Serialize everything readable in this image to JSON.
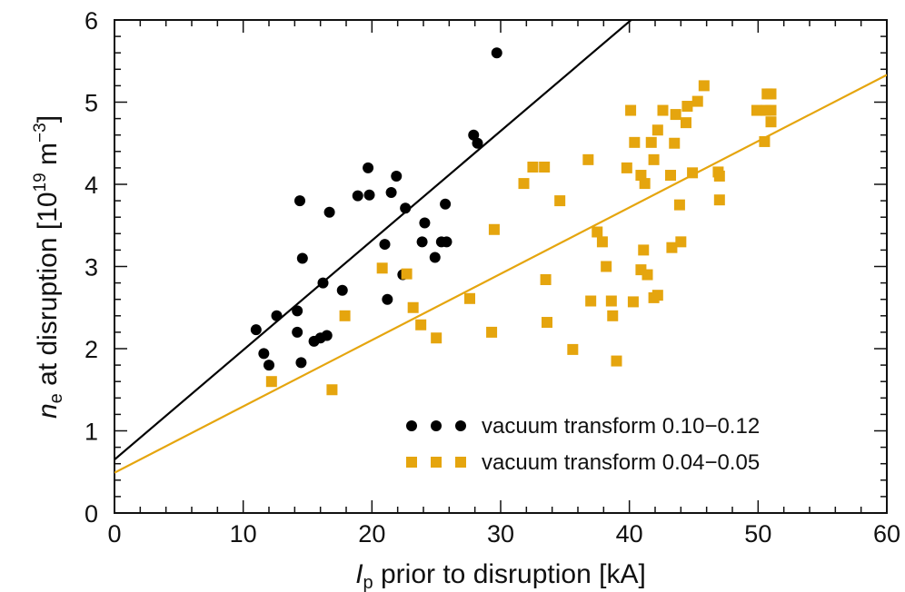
{
  "chart_data": {
    "type": "scatter",
    "title": "",
    "xlabel": {
      "symbol": "I",
      "sub": "p",
      "text": " prior to disruption [kA]"
    },
    "ylabel": {
      "symbol": "n",
      "sub": "e",
      "text": " at disruption [10",
      "exp1": "19",
      "unit": " m",
      "exp2": "−3",
      "close": "]"
    },
    "xlim": [
      0,
      60
    ],
    "ylim": [
      0,
      6
    ],
    "xticks": [
      "0",
      "10",
      "20",
      "30",
      "40",
      "50",
      "60"
    ],
    "yticks": [
      "0",
      "1",
      "2",
      "3",
      "4",
      "5",
      "6"
    ],
    "grid": false,
    "legend_position": "bottom-right",
    "series": [
      {
        "name": "vacuum transform  0.10−0.12",
        "marker": "circle",
        "color": "#000000",
        "fit_line": {
          "intercept": 0.65,
          "slope": 0.1333
        },
        "points": [
          [
            11.0,
            2.23
          ],
          [
            11.6,
            1.94
          ],
          [
            12.0,
            1.8
          ],
          [
            12.6,
            2.4
          ],
          [
            14.2,
            2.46
          ],
          [
            14.2,
            2.2
          ],
          [
            14.4,
            3.8
          ],
          [
            14.5,
            1.83
          ],
          [
            14.6,
            3.1
          ],
          [
            15.5,
            2.09
          ],
          [
            16.0,
            2.13
          ],
          [
            16.2,
            2.8
          ],
          [
            16.5,
            2.16
          ],
          [
            16.7,
            3.66
          ],
          [
            17.7,
            2.71
          ],
          [
            18.9,
            3.86
          ],
          [
            19.7,
            4.2
          ],
          [
            19.8,
            3.87
          ],
          [
            21.0,
            3.27
          ],
          [
            21.2,
            2.6
          ],
          [
            21.5,
            3.9
          ],
          [
            21.9,
            4.1
          ],
          [
            22.4,
            2.9
          ],
          [
            22.6,
            3.71
          ],
          [
            23.9,
            3.3
          ],
          [
            24.1,
            3.53
          ],
          [
            24.9,
            3.11
          ],
          [
            25.4,
            3.3
          ],
          [
            25.7,
            3.76
          ],
          [
            25.8,
            3.3
          ],
          [
            27.9,
            4.6
          ],
          [
            28.2,
            4.5
          ],
          [
            29.7,
            5.6
          ]
        ]
      },
      {
        "name": "vacuum transform  0.04−0.05",
        "marker": "square",
        "color": "#e5a50e",
        "fit_line": {
          "intercept": 0.49,
          "slope": 0.0807
        },
        "points": [
          [
            12.2,
            1.6
          ],
          [
            16.9,
            1.5
          ],
          [
            17.9,
            2.4
          ],
          [
            20.8,
            2.98
          ],
          [
            22.7,
            2.91
          ],
          [
            23.2,
            2.5
          ],
          [
            23.8,
            2.29
          ],
          [
            25.0,
            2.13
          ],
          [
            27.6,
            2.61
          ],
          [
            29.3,
            2.2
          ],
          [
            29.5,
            3.45
          ],
          [
            31.8,
            4.01
          ],
          [
            32.5,
            4.21
          ],
          [
            33.4,
            4.21
          ],
          [
            33.5,
            2.84
          ],
          [
            33.6,
            2.32
          ],
          [
            34.6,
            3.8
          ],
          [
            35.6,
            1.99
          ],
          [
            36.8,
            4.3
          ],
          [
            37.0,
            2.58
          ],
          [
            37.5,
            3.42
          ],
          [
            37.9,
            3.3
          ],
          [
            38.2,
            3.0
          ],
          [
            38.6,
            2.58
          ],
          [
            38.7,
            2.4
          ],
          [
            39.0,
            1.85
          ],
          [
            39.8,
            4.2
          ],
          [
            40.1,
            4.9
          ],
          [
            40.3,
            2.57
          ],
          [
            40.4,
            4.51
          ],
          [
            40.9,
            4.11
          ],
          [
            40.9,
            2.96
          ],
          [
            41.1,
            3.2
          ],
          [
            41.2,
            4.01
          ],
          [
            41.4,
            2.9
          ],
          [
            41.7,
            4.51
          ],
          [
            41.9,
            4.3
          ],
          [
            41.9,
            2.62
          ],
          [
            42.2,
            4.66
          ],
          [
            42.2,
            2.65
          ],
          [
            42.6,
            4.9
          ],
          [
            43.2,
            4.11
          ],
          [
            43.3,
            3.23
          ],
          [
            43.5,
            4.5
          ],
          [
            43.6,
            4.85
          ],
          [
            43.9,
            3.75
          ],
          [
            44.0,
            3.3
          ],
          [
            44.4,
            4.75
          ],
          [
            44.5,
            4.95
          ],
          [
            44.9,
            4.14
          ],
          [
            45.3,
            5.01
          ],
          [
            45.8,
            5.2
          ],
          [
            46.9,
            4.15
          ],
          [
            47.0,
            3.81
          ],
          [
            47.0,
            4.1
          ],
          [
            49.9,
            4.9
          ],
          [
            50.5,
            4.52
          ],
          [
            50.6,
            4.9
          ],
          [
            50.7,
            5.1
          ],
          [
            51.0,
            5.1
          ],
          [
            51.0,
            4.76
          ],
          [
            51.0,
            4.9
          ]
        ]
      }
    ]
  }
}
